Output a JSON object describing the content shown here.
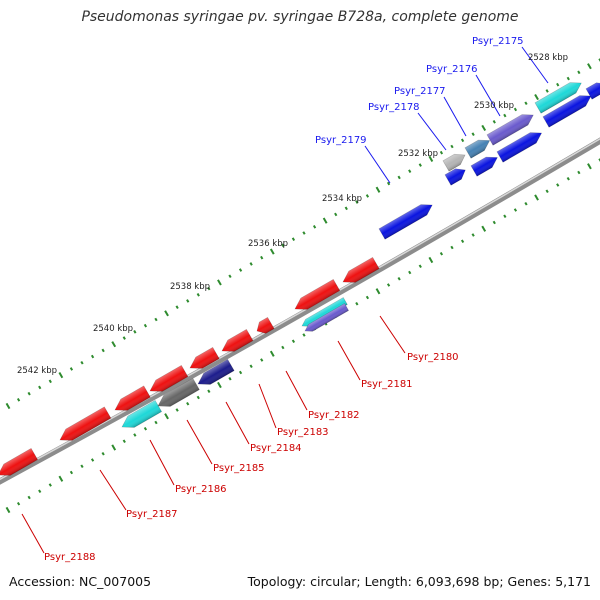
{
  "title": "Pseudomonas syringae pv. syringae B728a, complete genome",
  "footer": {
    "accession": "Accession: NC_007005",
    "summary": "Topology: circular; Length: 6,093,698 bp; Genes: 5,171"
  },
  "colors": {
    "backbone": "#8c8c8c",
    "forward_label": "#1a1aee",
    "reverse_label": "#cc0000",
    "tick": "#2e8b2e",
    "forward_gene": "#0a14e0",
    "reverse_gene": "#ee1111",
    "cyan_gene": "#1ed8d8",
    "purple_gene": "#6a5acd",
    "grey_gene": "#666666",
    "light_grey_gene": "#b5b5b5",
    "navy_gene": "#1c1c8c",
    "steel_gene": "#4682b4"
  },
  "ticks": [
    "2528 kbp",
    "2530 kbp",
    "2532 kbp",
    "2534 kbp",
    "2536 kbp",
    "2538 kbp",
    "2540 kbp",
    "2542 kbp"
  ],
  "forward_labels": [
    "Psyr_2175",
    "Psyr_2176",
    "Psyr_2177",
    "Psyr_2178",
    "Psyr_2179"
  ],
  "reverse_labels": [
    "Psyr_2180",
    "Psyr_2181",
    "Psyr_2182",
    "Psyr_2183",
    "Psyr_2184",
    "Psyr_2185",
    "Psyr_2186",
    "Psyr_2187",
    "Psyr_2188"
  ]
}
